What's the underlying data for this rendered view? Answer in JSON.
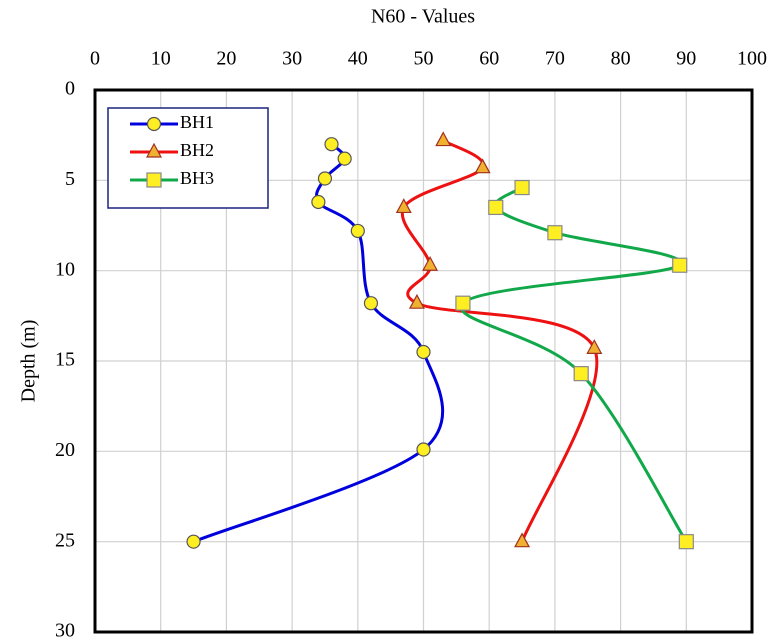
{
  "chart_data": {
    "type": "line",
    "xlabel": "N60 - Values",
    "ylabel": "Depth (m)",
    "xlim": [
      0,
      100
    ],
    "xticks": [
      0,
      10,
      20,
      30,
      40,
      50,
      60,
      70,
      80,
      90,
      100
    ],
    "ylim": [
      0,
      30
    ],
    "yticks": [
      0,
      5,
      10,
      15,
      20,
      25,
      30
    ],
    "y_inverted": true,
    "x_axis_position": "top",
    "grid": true,
    "smooth": true,
    "legend": "top-left",
    "series": [
      {
        "name": "BH1",
        "color": "#0000dd",
        "marker": "circle",
        "x": [
          36,
          38,
          35,
          34,
          40,
          42,
          50,
          50,
          15
        ],
        "values": [
          3.0,
          3.8,
          4.9,
          6.2,
          7.8,
          11.8,
          14.5,
          19.9,
          25
        ]
      },
      {
        "name": "BH2",
        "color": "#ee1111",
        "marker": "triangle",
        "x": [
          53,
          59,
          47,
          51,
          49,
          76,
          65
        ],
        "values": [
          2.8,
          4.3,
          6.5,
          9.7,
          11.8,
          14.3,
          25
        ]
      },
      {
        "name": "BH3",
        "color": "#11a84a",
        "marker": "square",
        "x": [
          65,
          61,
          70,
          89,
          56,
          74,
          90
        ],
        "values": [
          5.4,
          6.5,
          7.9,
          9.7,
          11.8,
          15.7,
          25
        ]
      }
    ]
  }
}
